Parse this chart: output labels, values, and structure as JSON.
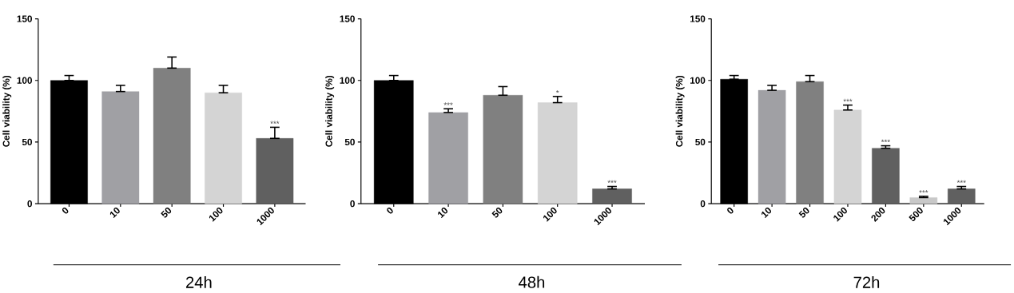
{
  "chart_data": [
    {
      "type": "bar",
      "xlabel": "24h",
      "ylabel": "Cell viability (%)",
      "categories": [
        "0",
        "10",
        "50",
        "100",
        "1000"
      ],
      "values": [
        100,
        91,
        110,
        90,
        53
      ],
      "colors": [
        "#000000",
        "#a0a0a4",
        "#808080",
        "#d4d4d4",
        "#606060"
      ],
      "errors": [
        [
          100,
          104
        ],
        [
          91,
          96
        ],
        [
          110,
          119
        ],
        [
          90,
          96
        ],
        [
          53,
          62
        ]
      ],
      "ylim": [
        0,
        150
      ],
      "yticks": [
        0,
        50,
        100,
        150
      ],
      "annotations": [
        {
          "text": "***",
          "x": "1000",
          "y": 62
        }
      ]
    },
    {
      "type": "bar",
      "xlabel": "48h",
      "ylabel": "Cell viability (%)",
      "categories": [
        "0",
        "10",
        "50",
        "100",
        "1000"
      ],
      "values": [
        100,
        74,
        88,
        82,
        12
      ],
      "colors": [
        "#000000",
        "#a0a0a4",
        "#808080",
        "#d4d4d4",
        "#606060"
      ],
      "errors": [
        [
          100,
          104
        ],
        [
          74,
          77
        ],
        [
          88,
          95
        ],
        [
          82,
          87
        ],
        [
          12,
          14
        ]
      ],
      "ylim": [
        0,
        150
      ],
      "yticks": [
        0,
        50,
        100,
        150
      ],
      "annotations": [
        {
          "text": "***",
          "x": "10",
          "y": 77
        },
        {
          "text": "*",
          "x": "100",
          "y": 87
        },
        {
          "text": "***",
          "x": "1000",
          "y": 14
        }
      ]
    },
    {
      "type": "bar",
      "xlabel": "72h",
      "ylabel": "Cell viability (%)",
      "categories": [
        "0",
        "10",
        "50",
        "100",
        "200",
        "500",
        "1000"
      ],
      "values": [
        101,
        92,
        99,
        76,
        45,
        5,
        12
      ],
      "colors": [
        "#000000",
        "#a0a0a4",
        "#808080",
        "#d4d4d4",
        "#606060",
        "#c8c8c8",
        "#606060"
      ],
      "errors": [
        [
          101,
          104
        ],
        [
          92,
          96
        ],
        [
          99,
          104
        ],
        [
          76,
          80
        ],
        [
          45,
          47
        ],
        [
          5,
          6
        ],
        [
          12,
          14
        ]
      ],
      "ylim": [
        0,
        150
      ],
      "yticks": [
        0,
        50,
        100,
        150
      ],
      "annotations": [
        {
          "text": "***",
          "x": "100",
          "y": 80
        },
        {
          "text": "***",
          "x": "200",
          "y": 47
        },
        {
          "text": "***",
          "x": "500",
          "y": 6
        },
        {
          "text": "***",
          "x": "1000",
          "y": 14
        }
      ]
    }
  ]
}
